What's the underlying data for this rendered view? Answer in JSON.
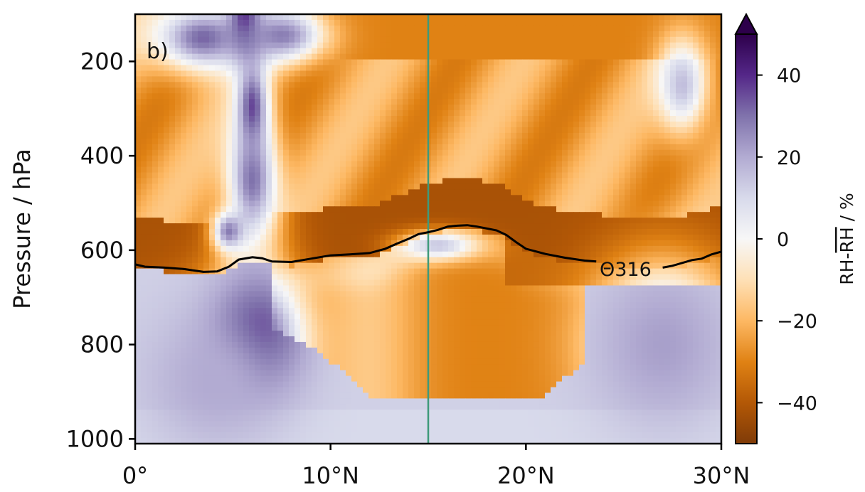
{
  "chart_data": {
    "type": "heatmap",
    "panel_label": "b)",
    "xlabel": "",
    "ylabel": "Pressure / hPa",
    "xlim": [
      0,
      30
    ],
    "ylim": [
      1010,
      100
    ],
    "x_ticks": [
      {
        "value": 0,
        "label": "0°"
      },
      {
        "value": 10,
        "label": "10°N"
      },
      {
        "value": 20,
        "label": "20°N"
      },
      {
        "value": 30,
        "label": "30°N"
      }
    ],
    "y_ticks": [
      {
        "value": 200,
        "label": "200"
      },
      {
        "value": 400,
        "label": "400"
      },
      {
        "value": 600,
        "label": "600"
      },
      {
        "value": 800,
        "label": "800"
      },
      {
        "value": 1000,
        "label": "1000"
      }
    ],
    "colorbar": {
      "label_main": "RH-",
      "label_over": "RH",
      "label_unit": " / %",
      "range": [
        -50,
        50
      ],
      "extend": "max",
      "ticks": [
        {
          "value": 40,
          "label": "40"
        },
        {
          "value": 20,
          "label": "20"
        },
        {
          "value": 0,
          "label": "0"
        },
        {
          "value": -20,
          "label": "−20"
        },
        {
          "value": -40,
          "label": "−40"
        }
      ],
      "colormap": "PuOr",
      "colors": [
        "#7f3b08",
        "#b35806",
        "#e08214",
        "#fdb863",
        "#fee0b6",
        "#f7f7f7",
        "#d8daeb",
        "#b2abd2",
        "#8073ac",
        "#542788",
        "#2d004b"
      ]
    },
    "vertical_line": {
      "x": 15,
      "color": "#3e9a7a"
    },
    "contour": {
      "label": "Θ316",
      "label_position": {
        "x": 25.1,
        "p": 638
      },
      "color": "#000000",
      "points": [
        [
          0.0,
          630
        ],
        [
          0.5,
          635
        ],
        [
          1.5,
          637
        ],
        [
          2.5,
          640
        ],
        [
          3.5,
          646
        ],
        [
          4.2,
          645
        ],
        [
          4.8,
          635
        ],
        [
          5.3,
          620
        ],
        [
          6.0,
          615
        ],
        [
          6.5,
          617
        ],
        [
          7.0,
          624
        ],
        [
          8.0,
          625
        ],
        [
          9.0,
          618
        ],
        [
          10.0,
          611
        ],
        [
          11.0,
          609
        ],
        [
          12.0,
          606
        ],
        [
          12.8,
          597
        ],
        [
          13.4,
          586
        ],
        [
          14.0,
          576
        ],
        [
          14.5,
          566
        ],
        [
          15.0,
          562
        ],
        [
          15.5,
          557
        ],
        [
          16.0,
          550
        ],
        [
          16.5,
          548
        ],
        [
          17.0,
          547
        ],
        [
          17.5,
          550
        ],
        [
          18.5,
          558
        ],
        [
          19.0,
          568
        ],
        [
          19.5,
          583
        ],
        [
          20.0,
          597
        ],
        [
          21.0,
          608
        ],
        [
          22.0,
          616
        ],
        [
          23.0,
          622
        ],
        [
          23.6,
          624
        ],
        [
          27.0,
          637
        ],
        [
          27.5,
          633
        ],
        [
          28.5,
          621
        ],
        [
          29.0,
          618
        ],
        [
          29.5,
          609
        ],
        [
          30.0,
          603
        ]
      ]
    },
    "features": [
      {
        "x": 5.6,
        "p": 110,
        "rx": 0.9,
        "rp": 75,
        "value": 46
      },
      {
        "x": 3.5,
        "p": 150,
        "rx": 2.5,
        "rp": 70,
        "value": 32
      },
      {
        "x": 7.5,
        "p": 145,
        "rx": 2.2,
        "rp": 55,
        "value": 28
      },
      {
        "x": 6.0,
        "p": 300,
        "rx": 0.8,
        "rp": 100,
        "value": 38
      },
      {
        "x": 6.0,
        "p": 450,
        "rx": 1.3,
        "rp": 130,
        "value": 30
      },
      {
        "x": 4.8,
        "p": 560,
        "rx": 0.8,
        "rp": 40,
        "value": 28
      },
      {
        "x": 6.2,
        "p": 780,
        "rx": 2.3,
        "rp": 120,
        "value": 40
      },
      {
        "x": 4.0,
        "p": 880,
        "rx": 3.5,
        "rp": 150,
        "value": 20
      },
      {
        "x": 15.5,
        "p": 590,
        "rx": 2.0,
        "rp": 30,
        "value": 14
      },
      {
        "x": 28.0,
        "p": 250,
        "rx": 1.3,
        "rp": 100,
        "value": 16
      },
      {
        "x": 27.0,
        "p": 800,
        "rx": 3.5,
        "rp": 170,
        "value": 22
      }
    ]
  }
}
